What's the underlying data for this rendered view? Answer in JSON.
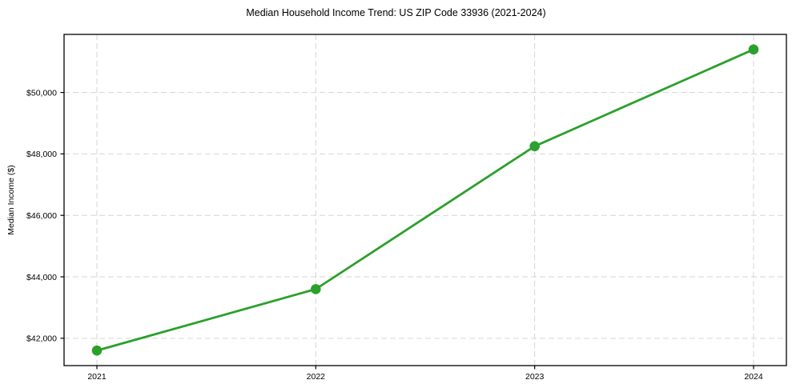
{
  "chart_data": {
    "type": "line",
    "title": "Median Household Income Trend: US ZIP Code 33936 (2021-2024)",
    "xlabel": "",
    "ylabel": "Median Income ($)",
    "categories": [
      "2021",
      "2022",
      "2023",
      "2024"
    ],
    "series": [
      {
        "name": "Median Household Income",
        "values": [
          41600,
          43600,
          48250,
          51400
        ]
      }
    ],
    "ytick_values": [
      42000,
      44000,
      46000,
      48000,
      50000
    ],
    "ytick_labels": [
      "$42,000",
      "$44,000",
      "$46,000",
      "$48,000",
      "$50,000"
    ],
    "ylim": [
      41110,
      51890
    ],
    "xlim": [
      -0.15,
      3.15
    ],
    "grid": "dashed-both-axes",
    "legend": "none",
    "colors": {
      "line": "#2ca02c",
      "marker": "#2ca02c",
      "grid": "#d6d6d6",
      "spine": "#000000",
      "text": "#000000",
      "background": "#ffffff"
    }
  }
}
